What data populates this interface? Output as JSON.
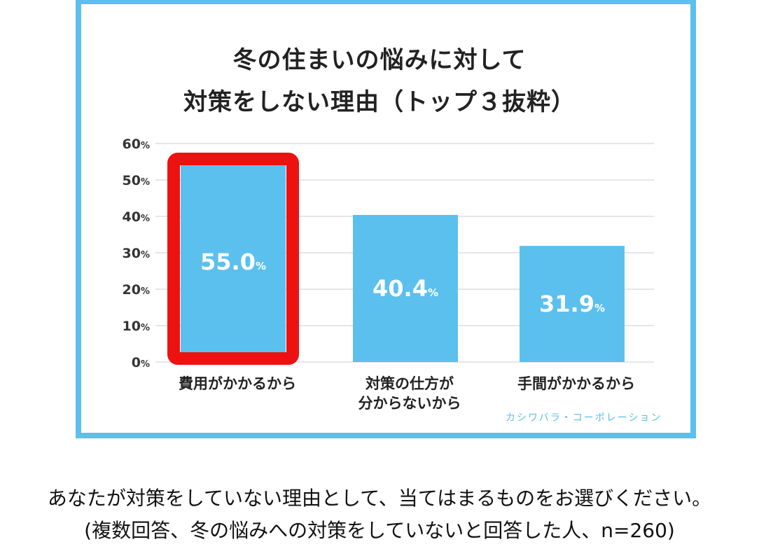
{
  "chart_data": {
    "type": "bar",
    "title_line1": "冬の住まいの悩みに対して",
    "title_line2": "対策をしない理由（トップ３抜粋）",
    "categories": [
      [
        "費用がかかるから"
      ],
      [
        "対策の仕方が",
        "分からないから"
      ],
      [
        "手間がかかるから"
      ]
    ],
    "values": [
      55.0,
      40.4,
      31.9
    ],
    "value_labels": [
      "55.0",
      "40.4",
      "31.9"
    ],
    "value_unit": "%",
    "yticks": [
      "0%",
      "10%",
      "20%",
      "30%",
      "40%",
      "50%",
      "60%"
    ],
    "ylim": [
      0,
      60
    ],
    "highlight_index": 0,
    "grid": true,
    "colors": {
      "bar": "#5bc0ee",
      "highlight": "#ee1111",
      "frame": "#5bc0ee",
      "grid": "#cccccc"
    }
  },
  "source": "カシワバラ・コーポレーション",
  "caption_line1": "あなたが対策をしていない理由として、当てはまるものをお選びください。",
  "caption_line2": "(複数回答、冬の悩みへの対策をしていないと回答した人、n=260)"
}
